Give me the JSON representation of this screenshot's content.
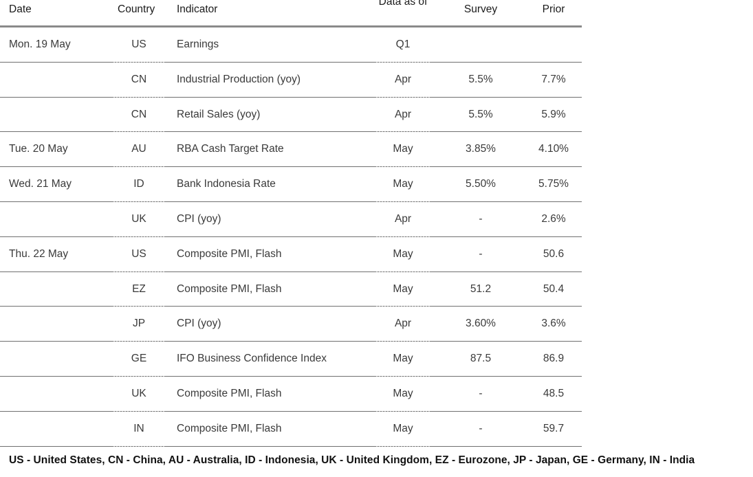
{
  "headers": {
    "date": "Date",
    "country": "Country",
    "indicator": "Indicator",
    "asof": "Data as of",
    "survey": "Survey",
    "prior": "Prior"
  },
  "rows": [
    {
      "date": "Mon. 19 May",
      "country": "US",
      "indicator": "Earnings",
      "asof": "Q1",
      "survey": "",
      "prior": ""
    },
    {
      "date": "",
      "country": "CN",
      "indicator": "Industrial Production (yoy)",
      "asof": "Apr",
      "survey": "5.5%",
      "prior": "7.7%"
    },
    {
      "date": "",
      "country": "CN",
      "indicator": "Retail Sales (yoy)",
      "asof": "Apr",
      "survey": "5.5%",
      "prior": "5.9%"
    },
    {
      "date": "Tue. 20 May",
      "country": "AU",
      "indicator": "RBA Cash Target Rate",
      "asof": "May",
      "survey": "3.85%",
      "prior": "4.10%"
    },
    {
      "date": "Wed. 21 May",
      "country": "ID",
      "indicator": "Bank Indonesia Rate",
      "asof": "May",
      "survey": "5.50%",
      "prior": "5.75%"
    },
    {
      "date": "",
      "country": "UK",
      "indicator": "CPI (yoy)",
      "asof": "Apr",
      "survey": "-",
      "prior": "2.6%"
    },
    {
      "date": "Thu. 22 May",
      "country": "US",
      "indicator": "Composite PMI, Flash",
      "asof": "May",
      "survey": "-",
      "prior": "50.6"
    },
    {
      "date": "",
      "country": "EZ",
      "indicator": "Composite PMI, Flash",
      "asof": "May",
      "survey": "51.2",
      "prior": "50.4"
    },
    {
      "date": "",
      "country": "JP",
      "indicator": "CPI (yoy)",
      "asof": "Apr",
      "survey": "3.60%",
      "prior": "3.6%"
    },
    {
      "date": "",
      "country": "GE",
      "indicator": "IFO Business Confidence Index",
      "asof": "May",
      "survey": "87.5",
      "prior": "86.9"
    },
    {
      "date": "",
      "country": "UK",
      "indicator": "Composite PMI, Flash",
      "asof": "May",
      "survey": "-",
      "prior": "48.5"
    },
    {
      "date": "",
      "country": "IN",
      "indicator": "Composite PMI, Flash",
      "asof": "May",
      "survey": "-",
      "prior": "59.7"
    }
  ],
  "footnote": "US - United States, CN - China, AU - Australia, ID - Indonesia, UK - United Kingdom, EZ - Eurozone, JP - Japan, GE - Germany, IN - India"
}
